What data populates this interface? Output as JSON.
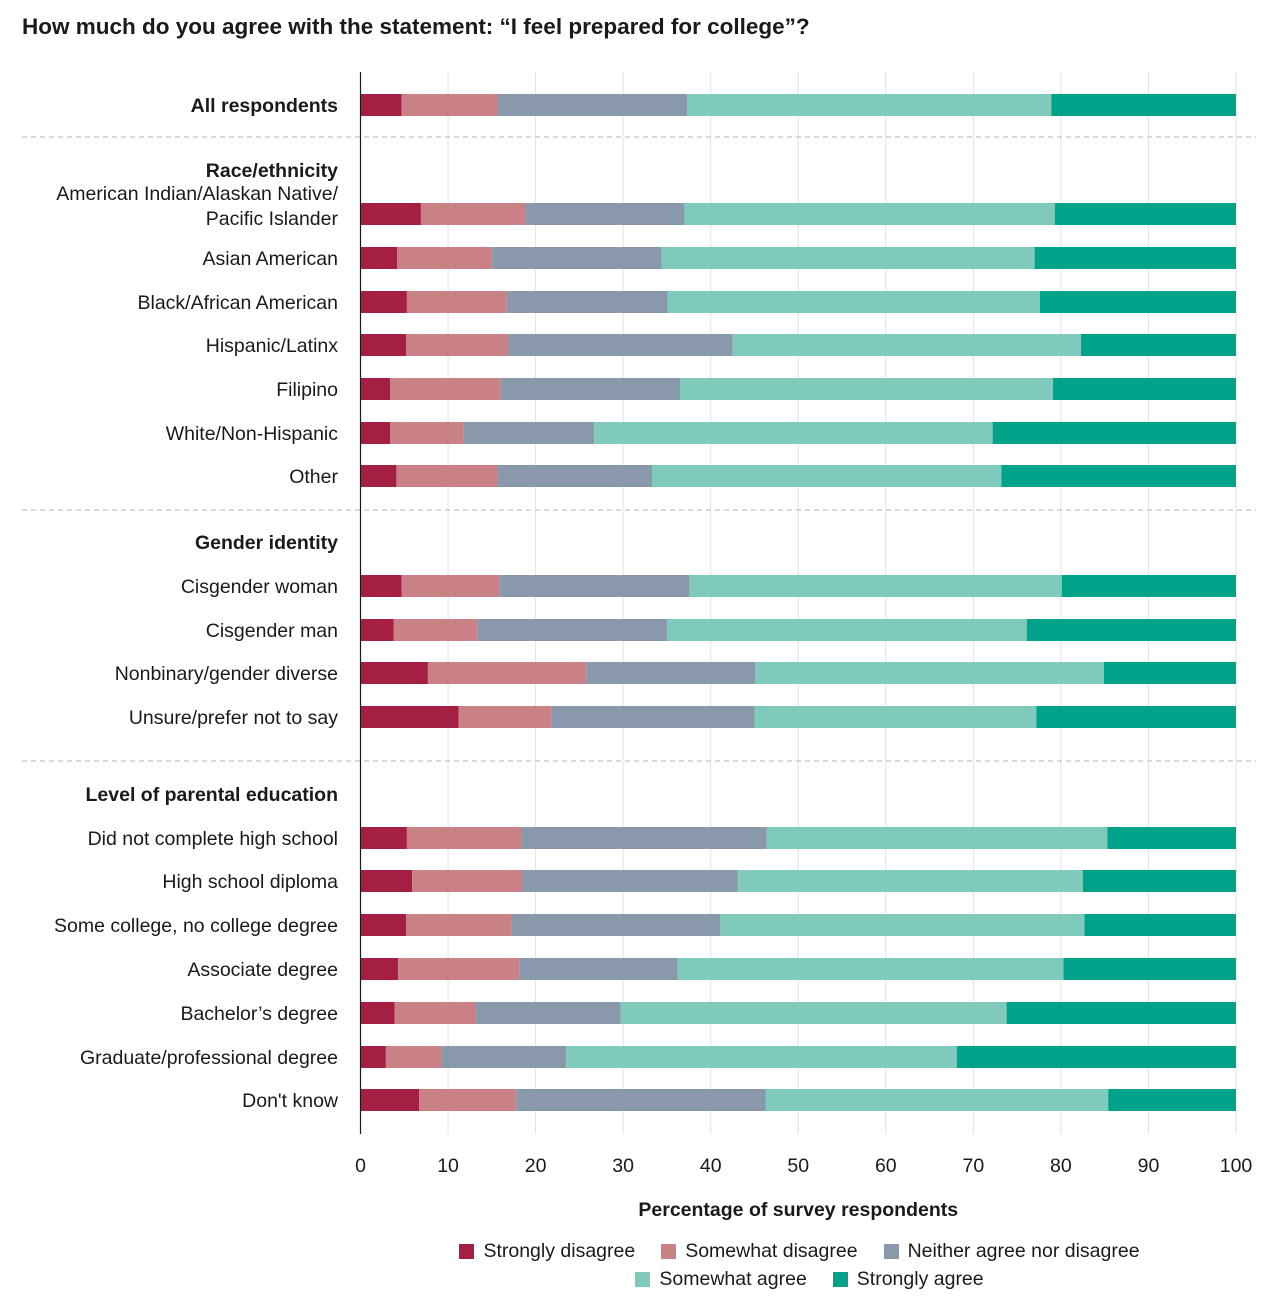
{
  "chart_data": {
    "type": "bar",
    "orientation": "horizontal",
    "stacked": true,
    "title": "How much do you agree with the statement: “I feel prepared for college”?",
    "xlabel": "Percentage of survey respondents",
    "ylabel": "",
    "xlim": [
      0,
      100
    ],
    "xticks": [
      "0",
      "10",
      "20",
      "30",
      "40",
      "50",
      "60",
      "70",
      "80",
      "90",
      "100"
    ],
    "grid": true,
    "legend_position": "bottom",
    "series": [
      {
        "name": "Strongly disagree",
        "color": "#a51f45"
      },
      {
        "name": "Somewhat disagree",
        "color": "#c98185"
      },
      {
        "name": "Neither agree nor disagree",
        "color": "#8999ab"
      },
      {
        "name": "Somewhat agree",
        "color": "#7fcaba"
      },
      {
        "name": "Strongly agree",
        "color": "#00a389"
      }
    ],
    "groups": [
      {
        "heading": "",
        "rows": [
          {
            "label": "All respondents",
            "bold": true,
            "values": [
              4.7,
              11.0,
              21.6,
              41.6,
              21.1
            ]
          }
        ]
      },
      {
        "heading": "Race/ethnicity",
        "rows": [
          {
            "label": "American Indian/Alaskan Native/\nPacific Islander",
            "values": [
              6.9,
              11.9,
              18.2,
              42.3,
              20.7
            ]
          },
          {
            "label": "Asian American",
            "values": [
              4.2,
              10.8,
              19.4,
              42.6,
              23.0
            ]
          },
          {
            "label": "Black/African American",
            "values": [
              5.3,
              11.4,
              18.4,
              42.5,
              22.4
            ]
          },
          {
            "label": "Hispanic/Latinx",
            "values": [
              5.2,
              11.7,
              25.6,
              39.8,
              17.7
            ]
          },
          {
            "label": "Filipino",
            "values": [
              3.4,
              12.6,
              20.5,
              42.6,
              20.9
            ]
          },
          {
            "label": "White/Non-Hispanic",
            "values": [
              3.4,
              8.4,
              14.9,
              45.5,
              27.8
            ]
          },
          {
            "label": "Other",
            "values": [
              4.1,
              11.5,
              17.7,
              39.9,
              26.8
            ]
          }
        ]
      },
      {
        "heading": "Gender identity",
        "rows": [
          {
            "label": "Cisgender woman",
            "values": [
              4.7,
              11.2,
              21.7,
              42.5,
              19.9
            ]
          },
          {
            "label": "Cisgender man",
            "values": [
              3.8,
              9.6,
              21.6,
              41.1,
              23.9
            ]
          },
          {
            "label": "Nonbinary/gender diverse",
            "values": [
              7.7,
              18.1,
              19.3,
              39.8,
              15.1
            ]
          },
          {
            "label": "Unsure/prefer not to say",
            "values": [
              11.2,
              10.6,
              23.2,
              32.2,
              22.8
            ]
          }
        ]
      },
      {
        "heading": "Level of parental education",
        "rows": [
          {
            "label": "Did not complete high school",
            "values": [
              5.3,
              13.1,
              28.0,
              38.9,
              14.7
            ]
          },
          {
            "label": "High school diploma",
            "values": [
              5.9,
              12.6,
              24.6,
              39.4,
              17.5
            ]
          },
          {
            "label": "Some college, no college degree",
            "values": [
              5.2,
              12.0,
              23.9,
              41.6,
              17.3
            ]
          },
          {
            "label": "Associate degree",
            "values": [
              4.3,
              13.9,
              18.0,
              44.1,
              19.7
            ]
          },
          {
            "label": "Bachelor’s degree",
            "values": [
              3.9,
              9.3,
              16.5,
              44.1,
              26.2
            ]
          },
          {
            "label": "Graduate/professional degree",
            "values": [
              2.9,
              6.4,
              14.2,
              44.6,
              31.9
            ]
          },
          {
            "label": "Don't know",
            "values": [
              6.7,
              11.1,
              28.5,
              39.1,
              14.6
            ]
          }
        ]
      }
    ]
  }
}
